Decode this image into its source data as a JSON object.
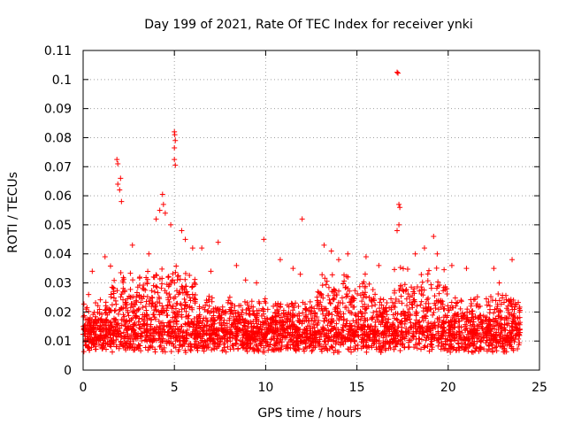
{
  "chart_data": {
    "type": "scatter",
    "title": "Day 199 of 2021, Rate Of TEC Index for receiver ynki",
    "xlabel": "GPS time / hours",
    "ylabel": "ROTI / TECUs",
    "xlim": [
      0,
      25
    ],
    "ylim": [
      0,
      0.11
    ],
    "x_ticks": [
      "0",
      "5",
      "10",
      "15",
      "20",
      "25"
    ],
    "y_ticks": [
      "0",
      "0.01",
      "0.02",
      "0.03",
      "0.04",
      "0.05",
      "0.06",
      "0.07",
      "0.08",
      "0.09",
      "0.1",
      "0.11"
    ],
    "grid": true,
    "marker": "+",
    "color": "#ff0000",
    "series": [
      {
        "name": "ROTI",
        "points": [
          [
            17.2,
            0.1025
          ],
          [
            17.25,
            0.1022
          ],
          [
            5.0,
            0.082
          ],
          [
            5.02,
            0.081
          ],
          [
            5.05,
            0.079
          ],
          [
            5.0,
            0.0765
          ],
          [
            5.0,
            0.0725
          ],
          [
            5.05,
            0.0705
          ],
          [
            1.85,
            0.0725
          ],
          [
            1.9,
            0.071
          ],
          [
            2.05,
            0.066
          ],
          [
            1.9,
            0.064
          ],
          [
            2.0,
            0.062
          ],
          [
            2.1,
            0.058
          ],
          [
            4.35,
            0.0605
          ],
          [
            4.4,
            0.057
          ],
          [
            4.2,
            0.055
          ],
          [
            4.5,
            0.054
          ],
          [
            4.0,
            0.052
          ],
          [
            17.3,
            0.057
          ],
          [
            17.35,
            0.056
          ],
          [
            17.2,
            0.048
          ],
          [
            17.3,
            0.05
          ],
          [
            12.0,
            0.052
          ],
          [
            9.9,
            0.045
          ],
          [
            7.4,
            0.044
          ],
          [
            6.5,
            0.042
          ],
          [
            13.2,
            0.043
          ],
          [
            13.6,
            0.041
          ],
          [
            19.2,
            0.046
          ],
          [
            19.4,
            0.04
          ],
          [
            18.7,
            0.042
          ],
          [
            21.0,
            0.035
          ],
          [
            22.5,
            0.035
          ],
          [
            23.5,
            0.038
          ],
          [
            0.5,
            0.034
          ],
          [
            1.2,
            0.039
          ],
          [
            2.7,
            0.043
          ],
          [
            3.6,
            0.04
          ],
          [
            8.4,
            0.036
          ],
          [
            10.8,
            0.038
          ],
          [
            11.5,
            0.035
          ],
          [
            14.5,
            0.04
          ],
          [
            15.5,
            0.039
          ],
          [
            16.2,
            0.036
          ],
          [
            20.2,
            0.036
          ],
          [
            11.9,
            0.033
          ],
          [
            9.5,
            0.03
          ],
          [
            7.0,
            0.034
          ],
          [
            6.0,
            0.042
          ],
          [
            5.4,
            0.048
          ],
          [
            5.6,
            0.045
          ],
          [
            4.8,
            0.05
          ],
          [
            14.0,
            0.038
          ],
          [
            18.2,
            0.04
          ],
          [
            22.8,
            0.03
          ],
          [
            0.3,
            0.026
          ],
          [
            3.1,
            0.032
          ],
          [
            8.9,
            0.031
          ]
        ]
      }
    ]
  }
}
